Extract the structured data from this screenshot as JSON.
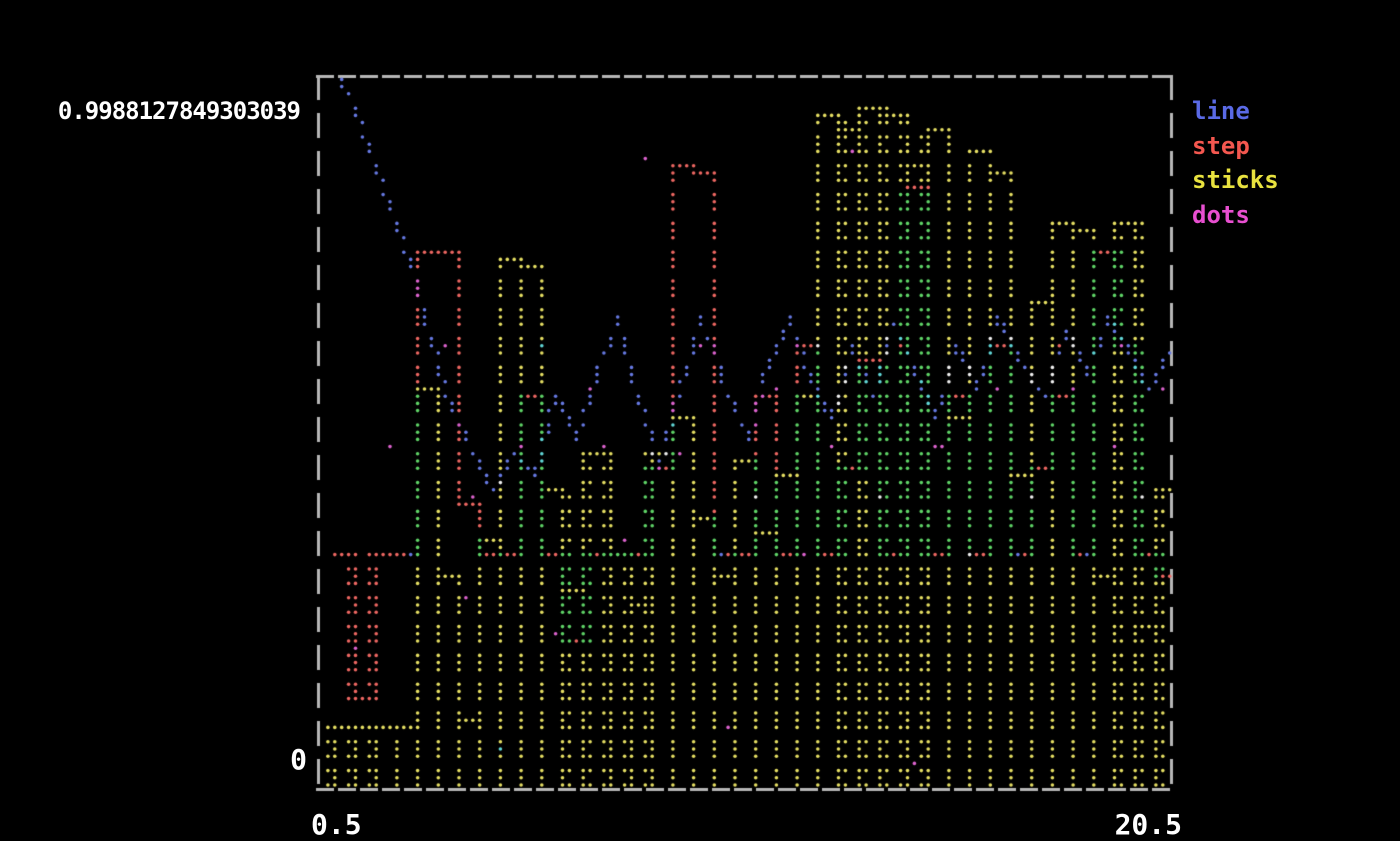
{
  "window": {
    "background": "#000000",
    "frame_color": "#b6b6b6"
  },
  "axis": {
    "y_max_label": "0.9988127849303039",
    "y_min_label": "0",
    "x_min_label": "0.5",
    "x_max_label": "20.5"
  },
  "chart_data": {
    "type": "mixed",
    "title": "",
    "xlabel": "",
    "ylabel": "",
    "xlim": [
      0.5,
      20.5
    ],
    "ylim": [
      0,
      0.9988127849303039
    ],
    "x_start": 1.0,
    "x_step": 0.5,
    "n_points": 40,
    "grid": false,
    "legend_position": "right-outside",
    "legend": [
      {
        "label": "line",
        "style": "line",
        "color": "#5a6ae6"
      },
      {
        "label": "step",
        "style": "step",
        "color": "#f4574f"
      },
      {
        "label": "sticks",
        "style": "sticks",
        "color": "#e8e23f"
      },
      {
        "label": "dots",
        "style": "dots",
        "color": "#e84fd0"
      }
    ],
    "blend_palette": {
      "1": "#ee6762",
      "2": "#5fd467",
      "3": "#e6df63",
      "4": "#6679e2",
      "5": "#dd63cf",
      "6": "#62d9d9",
      "7": "#f1f1f1"
    },
    "series": [
      {
        "name": "line",
        "style": "line",
        "ansi": 4,
        "values": [
          0.999,
          0.93,
          0.85,
          0.76,
          0.66,
          0.56,
          0.47,
          0.42,
          0.47,
          0.44,
          0.55,
          0.49,
          0.58,
          0.66,
          0.55,
          0.45,
          0.56,
          0.66,
          0.58,
          0.49,
          0.6,
          0.66,
          0.57,
          0.52,
          0.62,
          0.55,
          0.65,
          0.58,
          0.52,
          0.62,
          0.56,
          0.66,
          0.6,
          0.55,
          0.64,
          0.58,
          0.66,
          0.61,
          0.56,
          0.61
        ]
      },
      {
        "name": "step",
        "style": "step",
        "ansi": 1,
        "values": [
          0.33,
          0.12,
          0.33,
          0.33,
          0.75,
          0.75,
          0.4,
          0.33,
          0.33,
          0.55,
          0.33,
          0.2,
          0.33,
          0.33,
          0.33,
          0.45,
          0.88,
          0.87,
          0.33,
          0.33,
          0.55,
          0.33,
          0.62,
          0.33,
          0.45,
          0.6,
          0.33,
          0.85,
          0.33,
          0.55,
          0.33,
          0.62,
          0.33,
          0.45,
          0.55,
          0.33,
          0.75,
          0.62,
          0.33,
          0.3
        ]
      },
      {
        "name": "sticks",
        "style": "sticks",
        "ansi": 3,
        "values": [
          0.085,
          0.085,
          0.085,
          0.085,
          0.56,
          0.3,
          0.09,
          0.35,
          0.74,
          0.73,
          0.42,
          0.28,
          0.47,
          0.33,
          0.25,
          0.47,
          0.52,
          0.38,
          0.3,
          0.46,
          0.36,
          0.44,
          0.55,
          0.95,
          0.93,
          0.96,
          0.95,
          0.88,
          0.93,
          0.52,
          0.9,
          0.87,
          0.44,
          0.68,
          0.79,
          0.78,
          0.3,
          0.8,
          0.22,
          0.42
        ]
      },
      {
        "name": "dots",
        "style": "dots",
        "ansi": 5,
        "points": [
          [
            1.27,
            0.196
          ],
          [
            8.13,
            0.884
          ],
          [
            13.01,
            0.894
          ],
          [
            10.06,
            0.077
          ],
          [
            4.76,
            0.046
          ],
          [
            14.55,
            0.035
          ],
          [
            2.6,
            0.33
          ],
          [
            3.4,
            0.62
          ],
          [
            5.2,
            0.48
          ],
          [
            6.1,
            0.21
          ],
          [
            6.9,
            0.56
          ],
          [
            7.6,
            0.35
          ],
          [
            8.9,
            0.47
          ],
          [
            9.4,
            0.62
          ],
          [
            10.7,
            0.41
          ],
          [
            11.2,
            0.56
          ],
          [
            11.9,
            0.33
          ],
          [
            12.6,
            0.48
          ],
          [
            13.6,
            0.41
          ],
          [
            14.2,
            0.62
          ],
          [
            15.1,
            0.48
          ],
          [
            15.8,
            0.33
          ],
          [
            16.4,
            0.56
          ],
          [
            17.2,
            0.41
          ],
          [
            17.9,
            0.62
          ],
          [
            18.5,
            0.33
          ],
          [
            19.2,
            0.48
          ],
          [
            19.9,
            0.41
          ],
          [
            20.3,
            0.56
          ],
          [
            2.1,
            0.48
          ],
          [
            4.1,
            0.41
          ],
          [
            5.7,
            0.62
          ],
          [
            7.2,
            0.48
          ],
          [
            9.9,
            0.33
          ],
          [
            12.2,
            0.62
          ],
          [
            14.9,
            0.48
          ],
          [
            16.9,
            0.33
          ],
          [
            18.2,
            0.56
          ],
          [
            19.5,
            0.62
          ],
          [
            3.9,
            0.27
          ]
        ]
      }
    ]
  }
}
